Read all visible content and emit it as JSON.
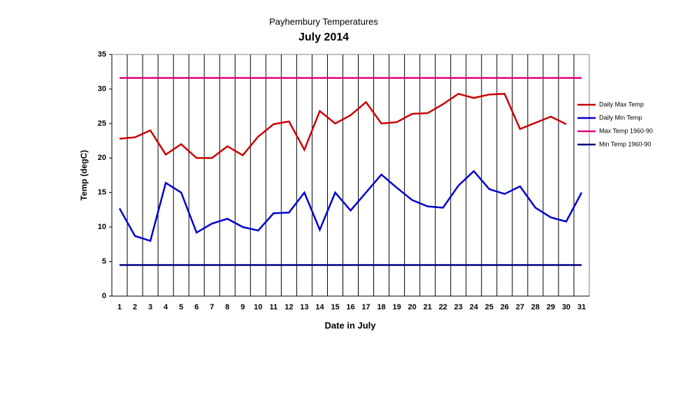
{
  "chart_data": {
    "type": "line",
    "title": "Payhembury Temperatures",
    "subtitle": "July 2014",
    "x_label": "Date in July",
    "y_label": "Temp (degC)",
    "categories": [
      "1",
      "2",
      "3",
      "4",
      "5",
      "6",
      "7",
      "8",
      "9",
      "10",
      "11",
      "12",
      "13",
      "14",
      "15",
      "16",
      "17",
      "18",
      "19",
      "20",
      "21",
      "22",
      "23",
      "24",
      "25",
      "26",
      "27",
      "28",
      "29",
      "30",
      "31"
    ],
    "series": [
      {
        "name": "Daily Max Temp",
        "color": "#cc0000",
        "values": [
          22.8,
          23.0,
          24.0,
          20.5,
          22.0,
          20.0,
          20.0,
          21.7,
          20.4,
          23.1,
          24.9,
          25.3,
          21.2,
          26.8,
          25.0,
          26.2,
          28.1,
          25.0,
          25.2,
          26.4,
          26.5,
          27.8,
          29.3,
          28.7,
          29.2,
          29.3,
          24.2,
          25.1,
          26.0,
          24.9,
          null
        ]
      },
      {
        "name": "Daily Min Temp",
        "color": "#0000cc",
        "values": [
          12.7,
          8.7,
          8.0,
          16.4,
          15.0,
          9.2,
          10.5,
          11.2,
          10.0,
          9.5,
          12.0,
          12.1,
          15.0,
          9.6,
          15.0,
          12.4,
          15.0,
          17.6,
          15.7,
          13.9,
          13.0,
          12.8,
          16.0,
          18.1,
          15.5,
          14.8,
          15.9,
          12.8,
          11.4,
          10.8,
          15.0
        ]
      },
      {
        "name": "Max Temp 1960-90",
        "color": "#e0007f",
        "values": [
          31.6,
          31.6,
          31.6,
          31.6,
          31.6,
          31.6,
          31.6,
          31.6,
          31.6,
          31.6,
          31.6,
          31.6,
          31.6,
          31.6,
          31.6,
          31.6,
          31.6,
          31.6,
          31.6,
          31.6,
          31.6,
          31.6,
          31.6,
          31.6,
          31.6,
          31.6,
          31.6,
          31.6,
          31.6,
          31.6,
          31.6
        ]
      },
      {
        "name": "Min Temp 1960-90",
        "color": "#000080",
        "values": [
          4.5,
          4.5,
          4.5,
          4.5,
          4.5,
          4.5,
          4.5,
          4.5,
          4.5,
          4.5,
          4.5,
          4.5,
          4.5,
          4.5,
          4.5,
          4.5,
          4.5,
          4.5,
          4.5,
          4.5,
          4.5,
          4.5,
          4.5,
          4.5,
          4.5,
          4.5,
          4.5,
          4.5,
          4.5,
          4.5,
          4.5
        ]
      }
    ],
    "ylim": [
      0,
      35
    ],
    "yticks": [
      0,
      5,
      10,
      15,
      20,
      25,
      30,
      35
    ],
    "grid": true,
    "legend": "right"
  }
}
